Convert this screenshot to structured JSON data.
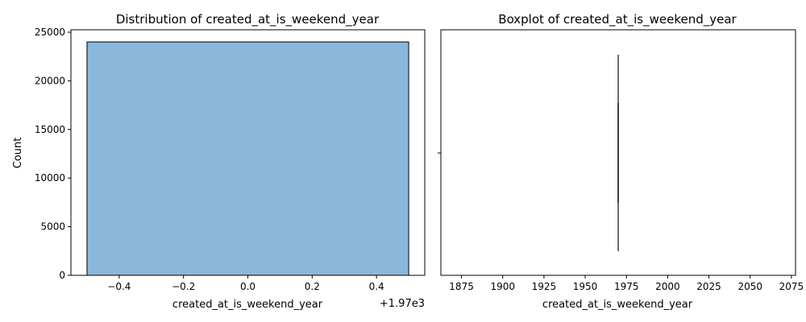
{
  "chart_data": [
    {
      "type": "bar",
      "title": "Distribution of created_at_is_weekend_year",
      "xlabel": "created_at_is_weekend_year",
      "ylabel": "Count",
      "x_offset_label": "+1.97e3",
      "xlim": [
        -0.55,
        0.55
      ],
      "ylim": [
        0,
        25250
      ],
      "x_ticks": [
        -0.4,
        -0.2,
        0.0,
        0.2,
        0.4
      ],
      "x_tick_labels": [
        "−0.4",
        "−0.2",
        "0.0",
        "0.2",
        "0.4"
      ],
      "y_ticks": [
        0,
        5000,
        10000,
        15000,
        20000,
        25000
      ],
      "y_tick_labels": [
        "0",
        "5000",
        "10000",
        "15000",
        "20000",
        "25000"
      ],
      "bins": [
        {
          "x_start": -0.5,
          "x_end": 0.5,
          "count": 24000
        }
      ],
      "bar_color": "#8bb8da",
      "edge_color": "#000000",
      "grid": false
    },
    {
      "type": "boxplot",
      "title": "Boxplot of created_at_is_weekend_year",
      "xlabel": "created_at_is_weekend_year",
      "xlim": [
        1862.5,
        2077.5
      ],
      "x_ticks": [
        1875,
        1900,
        1925,
        1950,
        1975,
        2000,
        2025,
        2050,
        2075
      ],
      "x_tick_labels": [
        "1875",
        "1900",
        "1925",
        "1950",
        "1975",
        "2000",
        "2025",
        "2050",
        "2075"
      ],
      "box": {
        "min": 1970,
        "q1": 1970,
        "median": 1970,
        "q3": 1970,
        "max": 1970
      },
      "line_color": "#3f3f3f",
      "grid": false
    }
  ]
}
